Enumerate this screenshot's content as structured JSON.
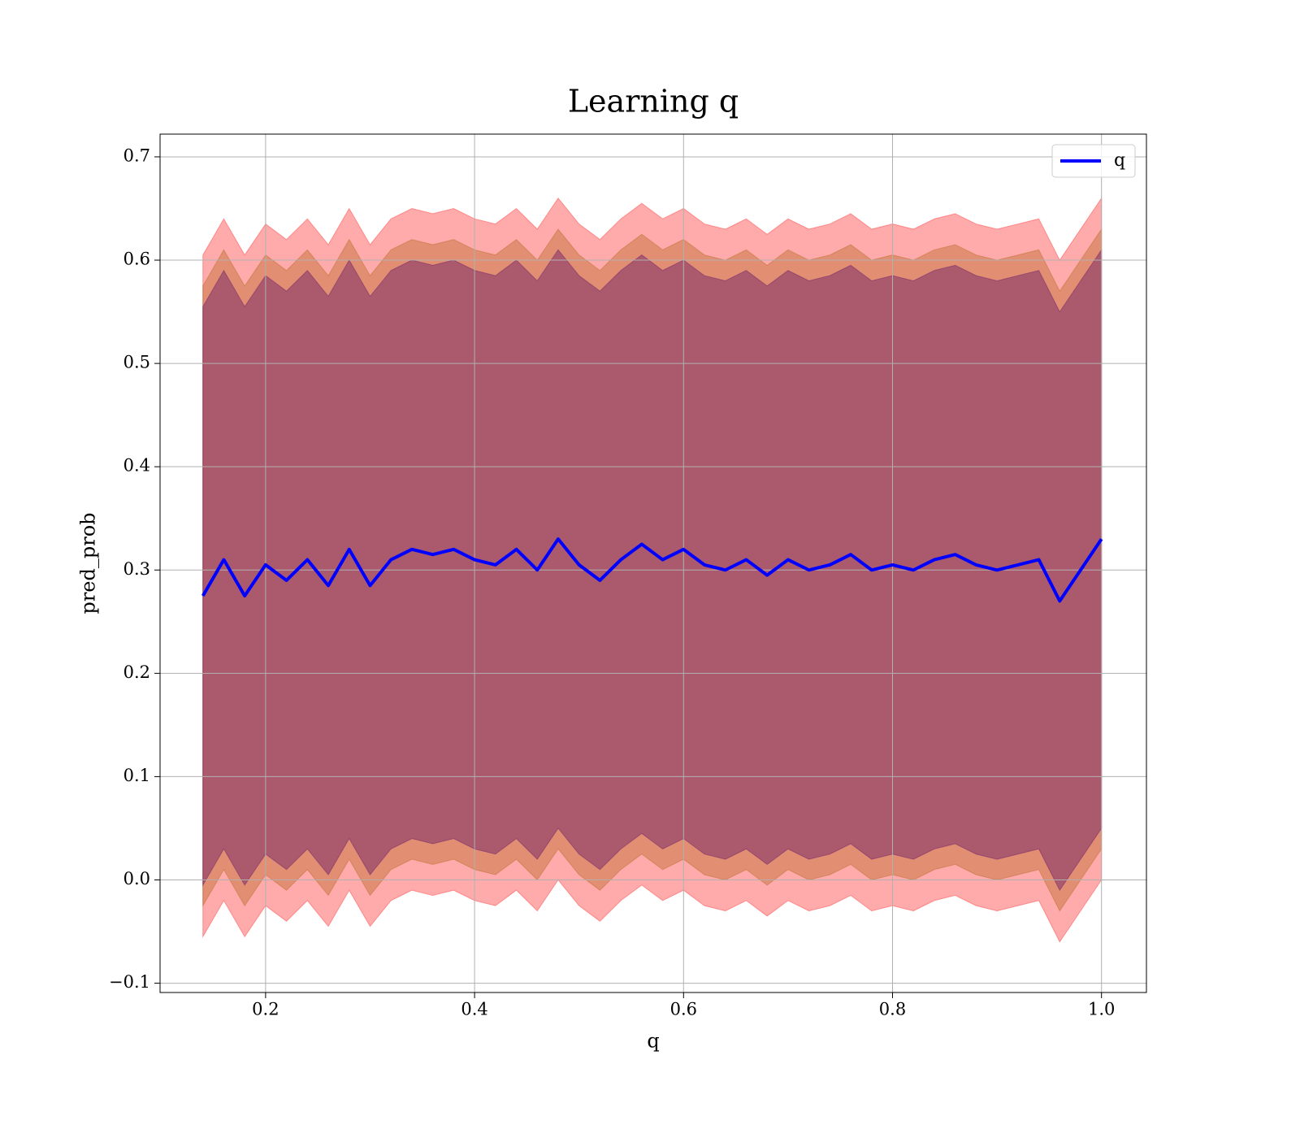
{
  "chart_data": {
    "type": "line",
    "title": "Learning q",
    "x_label": "q",
    "y_label": "pred_prob",
    "x": [
      0.14,
      0.16,
      0.18,
      0.2,
      0.22,
      0.24,
      0.26,
      0.28,
      0.3,
      0.32,
      0.34,
      0.36,
      0.38,
      0.4,
      0.42,
      0.44,
      0.46,
      0.48,
      0.5,
      0.52,
      0.54,
      0.56,
      0.58,
      0.6,
      0.62,
      0.64,
      0.66,
      0.68,
      0.7,
      0.72,
      0.74,
      0.76,
      0.78,
      0.8,
      0.82,
      0.84,
      0.86,
      0.88,
      0.9,
      0.92,
      0.94,
      0.96,
      0.98,
      1.0
    ],
    "series": [
      {
        "name": "q",
        "color": "#0000ff",
        "values": [
          0.275,
          0.31,
          0.275,
          0.305,
          0.29,
          0.31,
          0.285,
          0.32,
          0.285,
          0.31,
          0.32,
          0.315,
          0.32,
          0.31,
          0.305,
          0.32,
          0.3,
          0.33,
          0.305,
          0.29,
          0.31,
          0.325,
          0.31,
          0.32,
          0.305,
          0.3,
          0.31,
          0.295,
          0.31,
          0.3,
          0.305,
          0.315,
          0.3,
          0.305,
          0.3,
          0.31,
          0.315,
          0.305,
          0.3,
          0.305,
          0.31,
          0.27,
          0.3,
          0.33
        ]
      }
    ],
    "bands": [
      {
        "color": "#ff0000",
        "alpha": 0.33,
        "upper": [
          0.605,
          0.64,
          0.605,
          0.635,
          0.62,
          0.64,
          0.615,
          0.65,
          0.615,
          0.64,
          0.65,
          0.645,
          0.65,
          0.64,
          0.635,
          0.65,
          0.63,
          0.66,
          0.635,
          0.62,
          0.64,
          0.655,
          0.64,
          0.65,
          0.635,
          0.63,
          0.64,
          0.625,
          0.64,
          0.63,
          0.635,
          0.645,
          0.63,
          0.635,
          0.63,
          0.64,
          0.645,
          0.635,
          0.63,
          0.635,
          0.64,
          0.6,
          0.63,
          0.66
        ],
        "lower": [
          -0.055,
          -0.02,
          -0.055,
          -0.025,
          -0.04,
          -0.02,
          -0.045,
          -0.01,
          -0.045,
          -0.02,
          -0.01,
          -0.015,
          -0.01,
          -0.02,
          -0.025,
          -0.01,
          -0.03,
          0,
          -0.025,
          -0.04,
          -0.02,
          -0.005,
          -0.02,
          -0.01,
          -0.025,
          -0.03,
          -0.02,
          -0.035,
          -0.02,
          -0.03,
          -0.025,
          -0.015,
          -0.03,
          -0.025,
          -0.03,
          -0.02,
          -0.015,
          -0.025,
          -0.03,
          -0.025,
          -0.02,
          -0.06,
          -0.03,
          0
        ]
      },
      {
        "color": "#b5651d",
        "alpha": 0.4,
        "upper": [
          0.575,
          0.61,
          0.575,
          0.605,
          0.59,
          0.61,
          0.585,
          0.62,
          0.585,
          0.61,
          0.62,
          0.615,
          0.62,
          0.61,
          0.605,
          0.62,
          0.6,
          0.63,
          0.605,
          0.59,
          0.61,
          0.625,
          0.61,
          0.62,
          0.605,
          0.6,
          0.61,
          0.595,
          0.61,
          0.6,
          0.605,
          0.615,
          0.6,
          0.605,
          0.6,
          0.61,
          0.615,
          0.605,
          0.6,
          0.605,
          0.61,
          0.57,
          0.6,
          0.63
        ],
        "lower": [
          -0.025,
          0.01,
          -0.025,
          0.005,
          -0.01,
          0.01,
          -0.015,
          0.02,
          -0.015,
          0.01,
          0.02,
          0.015,
          0.02,
          0.01,
          0.005,
          0.02,
          0,
          0.03,
          0.005,
          -0.01,
          0.01,
          0.025,
          0.01,
          0.02,
          0.005,
          0,
          0.01,
          -0.005,
          0.01,
          0,
          0.005,
          0.015,
          0,
          0.005,
          0,
          0.01,
          0.015,
          0.005,
          0,
          0.005,
          0.01,
          -0.03,
          0,
          0.03
        ]
      },
      {
        "color": "#6a1b6a",
        "alpha": 0.45,
        "upper": [
          0.555,
          0.59,
          0.555,
          0.585,
          0.57,
          0.59,
          0.565,
          0.6,
          0.565,
          0.59,
          0.6,
          0.595,
          0.6,
          0.59,
          0.585,
          0.6,
          0.58,
          0.61,
          0.585,
          0.57,
          0.59,
          0.605,
          0.59,
          0.6,
          0.585,
          0.58,
          0.59,
          0.575,
          0.59,
          0.58,
          0.585,
          0.595,
          0.58,
          0.585,
          0.58,
          0.59,
          0.595,
          0.585,
          0.58,
          0.585,
          0.59,
          0.55,
          0.58,
          0.61
        ],
        "lower": [
          -0.005,
          0.03,
          -0.005,
          0.025,
          0.01,
          0.03,
          0.005,
          0.04,
          0.005,
          0.03,
          0.04,
          0.035,
          0.04,
          0.03,
          0.025,
          0.04,
          0.02,
          0.05,
          0.025,
          0.01,
          0.03,
          0.045,
          0.03,
          0.04,
          0.025,
          0.02,
          0.03,
          0.015,
          0.03,
          0.02,
          0.025,
          0.035,
          0.02,
          0.025,
          0.02,
          0.03,
          0.035,
          0.025,
          0.02,
          0.025,
          0.03,
          -0.01,
          0.02,
          0.05
        ]
      }
    ],
    "xlim": [
      0.099,
      1.043
    ],
    "ylim": [
      -0.109,
      0.722
    ],
    "xticks": [
      0.2,
      0.4,
      0.6,
      0.8,
      {
        "value": 1,
        "label": "1.0"
      }
    ],
    "yticks": [
      {
        "value": -0.1,
        "label": "−0.1"
      },
      {
        "value": 0,
        "label": "0.0"
      },
      0.1,
      0.2,
      0.3,
      0.4,
      0.5,
      0.6,
      0.7
    ],
    "grid": true,
    "legend": "upper right"
  }
}
